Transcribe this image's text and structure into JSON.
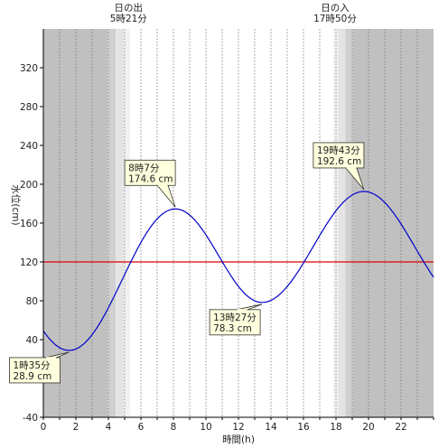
{
  "chart_data": {
    "type": "line",
    "title": "",
    "xlabel": "時間(h)",
    "ylabel": "水位(cm)",
    "xlim": [
      0,
      24
    ],
    "ylim": [
      -40,
      360
    ],
    "x_ticks": [
      0,
      2,
      4,
      6,
      8,
      10,
      12,
      14,
      16,
      18,
      20,
      22
    ],
    "y_ticks": [
      -40,
      0,
      40,
      80,
      120,
      160,
      200,
      240,
      280,
      320
    ],
    "grid": "vertical-dotted-hourly",
    "reference_line": {
      "value": 120,
      "color": "#e00000"
    },
    "series": [
      {
        "color": "#0000cc",
        "x": [
          0,
          1.583,
          8.117,
          13.45,
          19.717,
          24
        ],
        "y": [
          53,
          28.9,
          174.6,
          78.3,
          192.6,
          79
        ],
        "extrema": [
          {
            "x": 1.583,
            "y": 28.9,
            "type": "low"
          },
          {
            "x": 8.117,
            "y": 174.6,
            "type": "high"
          },
          {
            "x": 13.45,
            "y": 78.3,
            "type": "low"
          },
          {
            "x": 19.717,
            "y": 192.6,
            "type": "high"
          }
        ]
      }
    ],
    "sun": {
      "sunrise_hour": 5.35,
      "sunset_hour": 17.833,
      "sunrise_label": "日の出",
      "sunrise_time": "5時21分",
      "sunset_label": "日の入",
      "sunset_time": "17時50分",
      "colors": {
        "night": "#c0c0c0",
        "twilight1": "#d0d0d0",
        "twilight2": "#e4e4e4",
        "twilight3": "#f2f2f2",
        "day": "#ffffff"
      }
    },
    "annotations": [
      {
        "time": "1時35分",
        "value": "28.9 cm",
        "x": 1.583,
        "y": 28.9
      },
      {
        "time": "8時7分",
        "value": "174.6 cm",
        "x": 8.117,
        "y": 174.6
      },
      {
        "time": "13時27分",
        "value": "78.3 cm",
        "x": 13.45,
        "y": 78.3
      },
      {
        "time": "19時43分",
        "value": "192.6 cm",
        "x": 19.717,
        "y": 192.6
      }
    ]
  }
}
